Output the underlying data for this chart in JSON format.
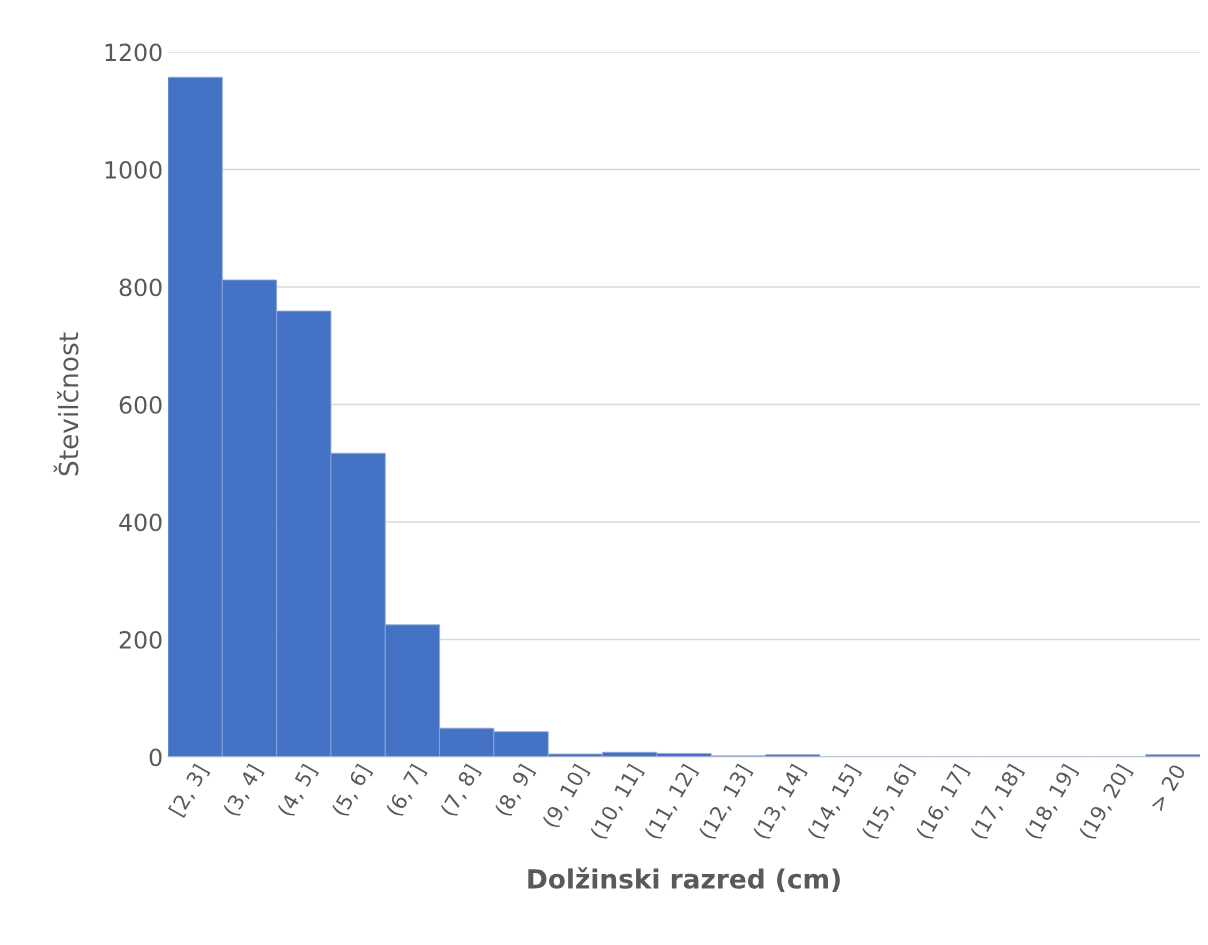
{
  "chart_data": {
    "type": "bar",
    "xlabel": "Dolžinski razred (cm)",
    "ylabel": "Številčnost",
    "categories": [
      "[2, 3]",
      "(3, 4]",
      "(4, 5]",
      "(5, 6]",
      "(6, 7]",
      "(7, 8]",
      "(8, 9]",
      "(9, 10]",
      "(10, 11]",
      "(11, 12]",
      "(12, 13]",
      "(13, 14]",
      "(14, 15]",
      "(15, 16]",
      "(16, 17]",
      "(17, 18]",
      "(18, 19]",
      "(19, 20]",
      "> 20"
    ],
    "values": [
      1157,
      812,
      759,
      517,
      225,
      49,
      43,
      5,
      8,
      6,
      2,
      4,
      0,
      0,
      0,
      0,
      0,
      0,
      4
    ],
    "color": "#4472c4",
    "ylim": [
      0,
      1200
    ],
    "yticks": [
      0,
      200,
      400,
      600,
      800,
      1000,
      1200
    ],
    "grid": "y"
  }
}
